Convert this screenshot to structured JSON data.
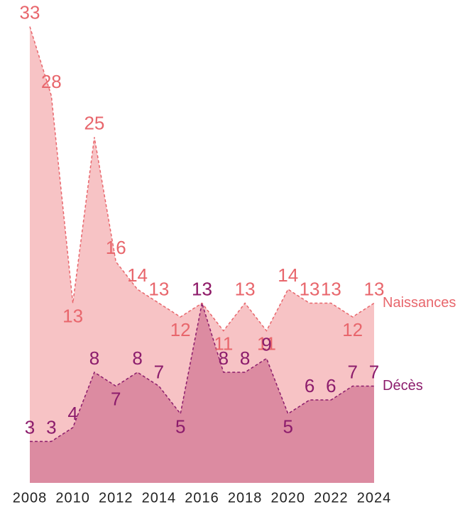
{
  "chart_data": {
    "type": "area",
    "x": [
      2008,
      2009,
      2010,
      2011,
      2012,
      2013,
      2014,
      2015,
      2016,
      2017,
      2018,
      2019,
      2020,
      2021,
      2022,
      2023,
      2024
    ],
    "series": [
      {
        "name": "Naissances",
        "color": "#e8666c",
        "fill": "#f7c3c5",
        "values": [
          33,
          28,
          13,
          25,
          16,
          14,
          13,
          12,
          13,
          11,
          13,
          11,
          14,
          13,
          13,
          12,
          13
        ]
      },
      {
        "name": "Décès",
        "color": "#8c1c6c",
        "fill": "#dc8ba1",
        "values": [
          3,
          3,
          4,
          8,
          7,
          8,
          7,
          5,
          13,
          8,
          8,
          9,
          5,
          6,
          6,
          7,
          7
        ]
      }
    ],
    "xlim": [
      2008,
      2024
    ],
    "xticks": [
      2008,
      2010,
      2012,
      2014,
      2016,
      2018,
      2020,
      2022,
      2024
    ],
    "ylim": [
      0,
      34
    ]
  }
}
